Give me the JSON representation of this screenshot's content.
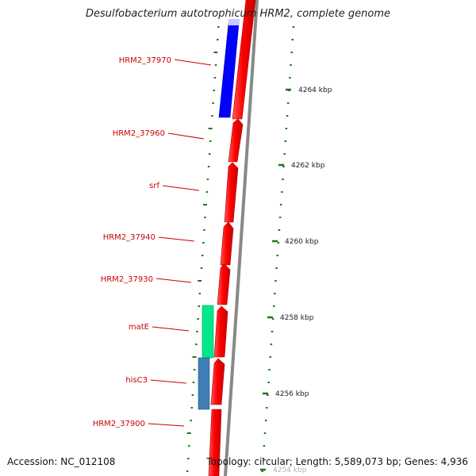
{
  "title": "Desulfobacterium autotrophicum HRM2, complete genome",
  "accession": "Accession: NC_012108",
  "topology": "Topology: circular; Length: 5,589,073 bp; Genes: 4,936",
  "colors": {
    "forward_cds": "#ff0000",
    "reverse_blue": "#0000ff",
    "mate": "#00e88a",
    "hisc3": "#3f7fb6",
    "tick": "#1a7a1a",
    "label": "#cc0000",
    "backbone": "#888888"
  },
  "genes": [
    {
      "name": "HRM2_37970"
    },
    {
      "name": "HRM2_37960"
    },
    {
      "name": "srf"
    },
    {
      "name": "HRM2_37940"
    },
    {
      "name": "HRM2_37930"
    },
    {
      "name": "matE"
    },
    {
      "name": "hisC3"
    },
    {
      "name": "HRM2_37900"
    }
  ],
  "kbp_ticks": [
    "4264 kbp",
    "4262 kbp",
    "4260 kbp",
    "4258 kbp",
    "4256 kbp",
    "4254 kbp"
  ]
}
